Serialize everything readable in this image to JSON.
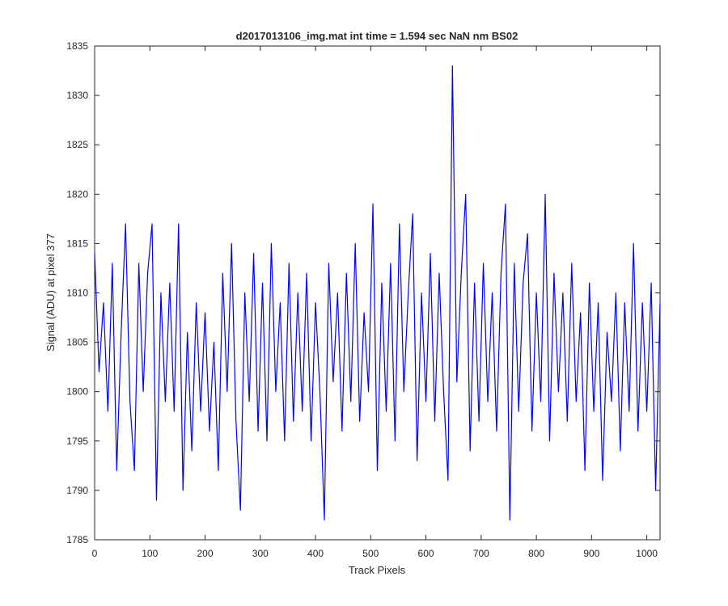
{
  "chart_data": {
    "type": "line",
    "title": "d2017013106_img.mat int time = 1.594 sec  NaN nm BS02",
    "x_label": "Track Pixels",
    "y_label": "Signal (ADU) at pixel 377",
    "xlim": [
      0,
      1024
    ],
    "ylim": [
      1785,
      1835
    ],
    "xticks": [
      0,
      100,
      200,
      300,
      400,
      500,
      600,
      700,
      800,
      900,
      1000
    ],
    "yticks": [
      1785,
      1790,
      1795,
      1800,
      1805,
      1810,
      1815,
      1820,
      1825,
      1830,
      1835
    ],
    "grid": false,
    "x": [
      0,
      8,
      16,
      24,
      32,
      40,
      48,
      56,
      64,
      72,
      80,
      88,
      96,
      104,
      112,
      120,
      128,
      136,
      144,
      152,
      160,
      168,
      176,
      184,
      192,
      200,
      208,
      216,
      224,
      232,
      240,
      248,
      256,
      264,
      272,
      280,
      288,
      296,
      304,
      312,
      320,
      328,
      336,
      344,
      352,
      360,
      368,
      376,
      384,
      392,
      400,
      408,
      416,
      424,
      432,
      440,
      448,
      456,
      464,
      472,
      480,
      488,
      496,
      504,
      512,
      520,
      528,
      536,
      544,
      552,
      560,
      568,
      576,
      584,
      592,
      600,
      608,
      616,
      624,
      632,
      640,
      648,
      656,
      664,
      672,
      680,
      688,
      696,
      704,
      712,
      720,
      728,
      736,
      744,
      752,
      760,
      768,
      776,
      784,
      792,
      800,
      808,
      816,
      824,
      832,
      840,
      848,
      856,
      864,
      872,
      880,
      888,
      896,
      904,
      912,
      920,
      928,
      936,
      944,
      952,
      960,
      968,
      976,
      984,
      992,
      1000,
      1008,
      1016,
      1024
    ],
    "series": [
      {
        "color": "#0000ff",
        "values": [
          1814,
          1802,
          1809,
          1798,
          1813,
          1792,
          1806,
          1817,
          1799,
          1792,
          1813,
          1800,
          1812,
          1817,
          1789,
          1810,
          1799,
          1811,
          1798,
          1817,
          1790,
          1806,
          1794,
          1809,
          1798,
          1808,
          1796,
          1805,
          1792,
          1812,
          1800,
          1815,
          1797,
          1788,
          1810,
          1799,
          1814,
          1796,
          1811,
          1795,
          1815,
          1800,
          1809,
          1795,
          1813,
          1797,
          1810,
          1798,
          1812,
          1795,
          1809,
          1800,
          1787,
          1813,
          1801,
          1810,
          1796,
          1812,
          1799,
          1815,
          1797,
          1808,
          1800,
          1819,
          1792,
          1811,
          1798,
          1813,
          1795,
          1817,
          1800,
          1810,
          1818,
          1793,
          1810,
          1799,
          1814,
          1797,
          1812,
          1800,
          1791,
          1833,
          1801,
          1812,
          1820,
          1794,
          1811,
          1797,
          1813,
          1799,
          1810,
          1796,
          1812,
          1819,
          1787,
          1813,
          1798,
          1811,
          1816,
          1796,
          1810,
          1799,
          1820,
          1795,
          1812,
          1800,
          1810,
          1797,
          1813,
          1799,
          1808,
          1792,
          1811,
          1798,
          1809,
          1791,
          1806,
          1799,
          1810,
          1794,
          1809,
          1798,
          1815,
          1796,
          1809,
          1798,
          1811,
          1790,
          1809
        ]
      }
    ]
  }
}
